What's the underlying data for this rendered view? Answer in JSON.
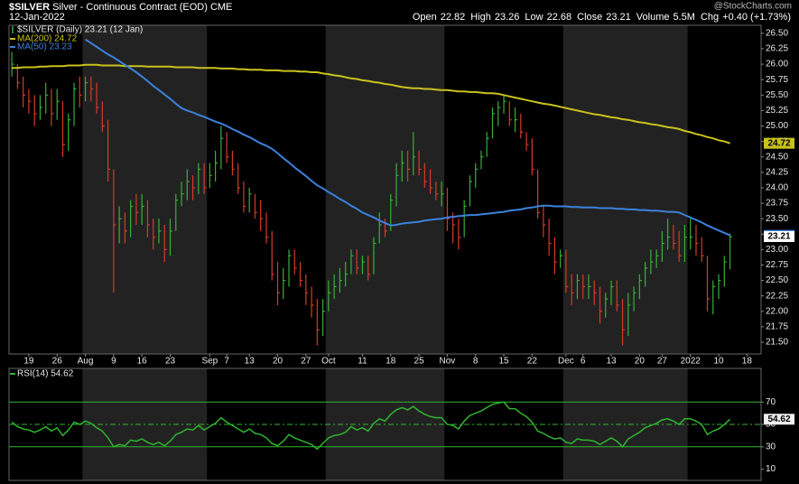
{
  "header": {
    "symbol": "$SILVER",
    "description": "Silver - Continuous Contract (EOD)",
    "exchange": "CME",
    "date": "12-Jan-2022",
    "watermark": "@StockCharts.com",
    "quote": [
      {
        "label": "Open",
        "value": "22.82"
      },
      {
        "label": "High",
        "value": "23.26"
      },
      {
        "label": "Low",
        "value": "22.68"
      },
      {
        "label": "Close",
        "value": "23.21"
      },
      {
        "label": "Volume",
        "value": "5.5M"
      },
      {
        "label": "Chg",
        "value": "+0.40 (+1.73%)"
      }
    ]
  },
  "chart_data": [
    {
      "type": "ohlc",
      "name": "$SILVER (Daily) 23.21 (12 Jan)",
      "up_color": "#38b038",
      "down_color": "#d63a2a",
      "bar_label_color": "#ffffff",
      "categories": [
        null,
        null,
        null,
        "19",
        null,
        null,
        null,
        null,
        "26",
        null,
        null,
        null,
        null,
        "Aug",
        null,
        null,
        null,
        null,
        "9",
        null,
        null,
        null,
        null,
        "16",
        null,
        null,
        null,
        null,
        "23",
        null,
        null,
        null,
        null,
        null,
        null,
        "Sep",
        null,
        null,
        "7",
        null,
        null,
        null,
        "13",
        null,
        null,
        null,
        null,
        "20",
        null,
        null,
        null,
        null,
        "27",
        null,
        null,
        null,
        "Oct",
        null,
        null,
        null,
        null,
        null,
        "11",
        null,
        null,
        null,
        null,
        "18",
        null,
        null,
        null,
        null,
        "25",
        null,
        null,
        null,
        null,
        "Nov",
        null,
        null,
        null,
        null,
        "8",
        null,
        null,
        null,
        null,
        "15",
        null,
        null,
        null,
        null,
        "22",
        null,
        null,
        null,
        null,
        null,
        "Dec",
        null,
        null,
        "6",
        null,
        null,
        null,
        null,
        "13",
        null,
        null,
        null,
        null,
        "20",
        null,
        null,
        null,
        "27",
        null,
        null,
        null,
        null,
        "2022",
        null,
        null,
        null,
        null,
        "10",
        null,
        null,
        null,
        null,
        "18",
        null,
        null
      ],
      "high": [
        26.2,
        26.0,
        25.8,
        25.6,
        25.5,
        25.5,
        25.7,
        25.6,
        25.6,
        25.4,
        25.2,
        25.7,
        25.8,
        25.8,
        25.8,
        25.7,
        25.4,
        25.1,
        24.3,
        23.7,
        23.6,
        23.8,
        23.9,
        23.9,
        23.8,
        23.5,
        23.5,
        23.4,
        23.5,
        23.9,
        24.1,
        24.3,
        24.2,
        24.4,
        24.4,
        24.4,
        24.6,
        25.0,
        24.9,
        24.6,
        24.4,
        24.1,
        24.0,
        23.9,
        23.8,
        23.6,
        23.3,
        22.8,
        22.7,
        23.0,
        23.0,
        22.8,
        22.6,
        22.4,
        22.2,
        22.2,
        22.5,
        22.6,
        22.7,
        22.8,
        23.0,
        23.0,
        22.9,
        22.9,
        23.2,
        23.6,
        23.5,
        23.9,
        24.4,
        24.6,
        24.6,
        24.9,
        24.6,
        24.4,
        24.3,
        24.1,
        24.1,
        24.0,
        23.6,
        23.5,
        23.8,
        24.2,
        24.4,
        24.6,
        24.9,
        25.3,
        25.4,
        25.5,
        25.4,
        25.3,
        25.2,
        24.9,
        24.8,
        24.3,
        23.7,
        23.5,
        23.2,
        23.0,
        23.0,
        22.6,
        22.6,
        22.6,
        22.6,
        22.5,
        22.4,
        22.3,
        22.5,
        22.5,
        22.2,
        22.3,
        22.4,
        22.6,
        22.8,
        23.0,
        23.0,
        23.3,
        23.5,
        23.4,
        23.3,
        23.4,
        23.5,
        23.4,
        23.2,
        22.9,
        22.5,
        22.6,
        22.9,
        23.26,
        null,
        null,
        null,
        null,
        null
      ],
      "low": [
        25.8,
        25.6,
        25.3,
        25.2,
        25.0,
        25.1,
        25.2,
        25.0,
        25.1,
        24.5,
        24.6,
        25.0,
        25.3,
        25.4,
        25.4,
        25.2,
        24.9,
        24.1,
        22.3,
        23.1,
        23.1,
        23.2,
        23.4,
        23.4,
        23.2,
        23.0,
        23.1,
        22.8,
        22.9,
        23.3,
        23.7,
        23.8,
        23.8,
        23.9,
        23.9,
        24.0,
        24.1,
        24.3,
        24.4,
        24.2,
        23.9,
        23.6,
        23.6,
        23.5,
        23.3,
        23.1,
        22.5,
        22.1,
        22.2,
        22.4,
        22.6,
        22.4,
        22.1,
        21.9,
        21.45,
        21.6,
        22.0,
        22.2,
        22.3,
        22.4,
        22.6,
        22.6,
        22.6,
        22.5,
        22.6,
        23.1,
        23.2,
        23.3,
        23.7,
        24.1,
        24.1,
        24.2,
        24.2,
        24.0,
        23.9,
        23.8,
        23.7,
        23.3,
        23.1,
        23.0,
        23.2,
        23.7,
        24.0,
        24.3,
        24.5,
        24.8,
        25.0,
        25.2,
        25.0,
        24.9,
        24.8,
        24.6,
        24.2,
        23.5,
        23.2,
        22.9,
        22.6,
        22.7,
        22.3,
        22.1,
        22.2,
        22.2,
        22.2,
        22.1,
        21.8,
        21.9,
        22.1,
        22.0,
        21.45,
        21.6,
        22.0,
        22.2,
        22.4,
        22.6,
        22.7,
        22.8,
        23.0,
        23.0,
        22.8,
        22.8,
        23.0,
        22.9,
        22.8,
        22.0,
        21.95,
        22.2,
        22.4,
        22.68,
        null,
        null,
        null,
        null,
        null
      ],
      "close": [
        26.0,
        25.7,
        25.5,
        25.4,
        25.2,
        25.3,
        25.5,
        25.2,
        25.4,
        24.7,
        25.1,
        25.6,
        25.5,
        25.7,
        25.6,
        25.3,
        25.0,
        24.3,
        23.4,
        23.5,
        23.3,
        23.7,
        23.6,
        23.7,
        23.4,
        23.2,
        23.3,
        23.0,
        23.3,
        23.8,
        23.9,
        24.1,
        24.0,
        24.3,
        24.0,
        24.2,
        24.4,
        24.8,
        24.5,
        24.3,
        24.0,
        23.7,
        23.9,
        23.6,
        23.5,
        23.2,
        22.6,
        22.3,
        22.5,
        22.9,
        22.7,
        22.5,
        22.3,
        22.1,
        21.7,
        22.0,
        22.3,
        22.4,
        22.5,
        22.6,
        22.9,
        22.7,
        22.8,
        22.6,
        23.1,
        23.4,
        23.3,
        23.8,
        24.2,
        24.4,
        24.3,
        24.5,
        24.3,
        24.1,
        24.0,
        23.9,
        23.9,
        23.5,
        23.4,
        23.2,
        23.7,
        24.1,
        24.3,
        24.5,
        24.8,
        25.2,
        25.3,
        25.4,
        25.1,
        25.1,
        24.9,
        24.7,
        24.3,
        23.6,
        23.4,
        23.1,
        22.8,
        22.9,
        22.4,
        22.3,
        22.5,
        22.4,
        22.4,
        22.3,
        22.0,
        22.2,
        22.4,
        22.1,
        21.7,
        22.1,
        22.3,
        22.5,
        22.7,
        22.8,
        22.9,
        23.1,
        23.2,
        23.1,
        22.9,
        23.2,
        23.2,
        23.1,
        22.9,
        22.2,
        22.4,
        22.5,
        22.8,
        23.21,
        null,
        null,
        null,
        null,
        null
      ],
      "series": [
        {
          "name": "MA(200) 24.72",
          "color": "#c9c21e",
          "values": [
            25.94,
            25.94,
            25.95,
            25.95,
            25.95,
            25.96,
            25.96,
            25.97,
            25.97,
            25.97,
            25.98,
            25.98,
            25.98,
            25.99,
            25.99,
            25.99,
            25.98,
            25.98,
            25.98,
            25.98,
            25.97,
            25.97,
            25.97,
            25.97,
            25.96,
            25.96,
            25.96,
            25.96,
            25.96,
            25.95,
            25.95,
            25.95,
            25.95,
            25.94,
            25.94,
            25.94,
            25.94,
            25.93,
            25.93,
            25.93,
            25.92,
            25.92,
            25.91,
            25.91,
            25.91,
            25.9,
            25.9,
            25.9,
            25.89,
            25.89,
            25.89,
            25.88,
            25.88,
            25.87,
            25.87,
            25.85,
            25.84,
            25.82,
            25.81,
            25.79,
            25.77,
            25.76,
            25.74,
            25.73,
            25.71,
            25.7,
            25.68,
            25.67,
            25.65,
            25.63,
            25.62,
            25.61,
            25.61,
            25.6,
            25.6,
            25.59,
            25.58,
            25.58,
            25.57,
            25.56,
            25.56,
            25.55,
            25.55,
            25.54,
            25.53,
            25.53,
            25.52,
            25.5,
            25.48,
            25.46,
            25.44,
            25.42,
            25.4,
            25.38,
            25.36,
            25.35,
            25.33,
            25.31,
            25.29,
            25.27,
            25.25,
            25.23,
            25.21,
            25.19,
            25.18,
            25.16,
            25.14,
            25.13,
            25.11,
            25.1,
            25.08,
            25.06,
            25.05,
            25.03,
            25.02,
            25.0,
            24.98,
            24.97,
            24.95,
            24.92,
            24.9,
            24.87,
            24.85,
            24.82,
            24.8,
            24.77,
            24.75,
            24.72,
            null,
            null,
            null,
            null,
            null
          ]
        },
        {
          "name": "MA(50) 23.23",
          "color": "#3b82dc",
          "values": [
            null,
            null,
            null,
            null,
            null,
            null,
            null,
            null,
            null,
            null,
            null,
            null,
            null,
            26.4,
            26.34,
            26.28,
            26.22,
            26.16,
            26.11,
            26.05,
            25.99,
            25.93,
            25.87,
            25.8,
            25.73,
            25.65,
            25.58,
            25.51,
            25.44,
            25.36,
            25.29,
            25.25,
            25.22,
            25.18,
            25.15,
            25.11,
            25.07,
            25.04,
            25.0,
            24.95,
            24.91,
            24.86,
            24.82,
            24.77,
            24.72,
            24.68,
            24.63,
            24.56,
            24.48,
            24.41,
            24.33,
            24.26,
            24.19,
            24.11,
            24.04,
            23.99,
            23.93,
            23.88,
            23.82,
            23.77,
            23.71,
            23.66,
            23.6,
            23.56,
            23.52,
            23.47,
            23.43,
            23.39,
            23.4,
            23.42,
            23.43,
            23.44,
            23.45,
            23.47,
            23.48,
            23.49,
            23.5,
            23.52,
            23.53,
            23.54,
            23.55,
            23.56,
            23.56,
            23.57,
            23.58,
            23.59,
            23.6,
            23.61,
            23.63,
            23.64,
            23.65,
            23.67,
            23.68,
            23.7,
            23.71,
            23.71,
            23.7,
            23.7,
            23.7,
            23.69,
            23.69,
            23.68,
            23.68,
            23.68,
            23.67,
            23.67,
            23.67,
            23.66,
            23.66,
            23.65,
            23.65,
            23.64,
            23.64,
            23.63,
            23.63,
            23.62,
            23.61,
            23.61,
            23.6,
            23.56,
            23.52,
            23.48,
            23.44,
            23.39,
            23.35,
            23.31,
            23.27,
            23.23,
            null,
            null,
            null,
            null,
            null
          ]
        }
      ],
      "ylim": [
        21.31,
        26.63
      ],
      "yticks": [
        {
          "value": 21.5,
          "label": "21.50"
        },
        {
          "value": 21.75,
          "label": "21.75"
        },
        {
          "value": 22,
          "label": "22.00"
        },
        {
          "value": 22.25,
          "label": "22.25"
        },
        {
          "value": 22.5,
          "label": "22.50"
        },
        {
          "value": 22.75,
          "label": "22.75"
        },
        {
          "value": 23,
          "label": "23.00"
        },
        {
          "value": 23.25,
          "label": "23.25"
        },
        {
          "value": 23.5,
          "label": "23.50"
        },
        {
          "value": 23.75,
          "label": "23.75"
        },
        {
          "value": 24,
          "label": "24.00"
        },
        {
          "value": 24.25,
          "label": "24.25"
        },
        {
          "value": 24.5,
          "label": "24.50"
        },
        {
          "value": 24.75,
          "label": "24.75"
        },
        {
          "value": 25,
          "label": "25.00"
        },
        {
          "value": 25.25,
          "label": "25.25"
        },
        {
          "value": 25.5,
          "label": "25.50"
        },
        {
          "value": 25.75,
          "label": "25.75"
        },
        {
          "value": 26,
          "label": "26.00"
        },
        {
          "value": 26.25,
          "label": "26.25"
        },
        {
          "value": 26.5,
          "label": "26.50"
        }
      ]
    },
    {
      "type": "line",
      "series": [
        {
          "name": "RSI(14) 54.62",
          "color": "#2fb52f",
          "values": [
            52,
            48,
            46,
            45,
            43,
            45,
            48,
            44,
            47,
            40,
            45,
            52,
            50,
            53,
            51,
            47,
            44,
            38,
            30,
            32,
            31,
            36,
            35,
            37,
            34,
            32,
            34,
            31,
            35,
            41,
            43,
            46,
            45,
            49,
            45,
            48,
            51,
            56,
            52,
            49,
            46,
            43,
            46,
            42,
            41,
            38,
            33,
            31,
            35,
            41,
            38,
            36,
            34,
            32,
            28,
            33,
            38,
            40,
            41,
            43,
            48,
            45,
            47,
            44,
            51,
            55,
            53,
            59,
            63,
            65,
            63,
            66,
            62,
            59,
            57,
            56,
            56,
            50,
            49,
            46,
            53,
            58,
            60,
            62,
            65,
            68,
            69,
            70,
            64,
            64,
            60,
            57,
            52,
            44,
            42,
            39,
            37,
            38,
            34,
            33,
            37,
            36,
            36,
            35,
            32,
            35,
            38,
            35,
            30,
            37,
            40,
            43,
            47,
            49,
            51,
            54,
            55,
            53,
            50,
            55,
            55,
            53,
            50,
            41,
            44,
            46,
            50,
            54.62,
            null,
            null,
            null,
            null,
            null
          ]
        }
      ],
      "ylim": [
        0,
        100
      ],
      "yticks": [
        10,
        30,
        50,
        70
      ],
      "bands": [
        30,
        70
      ],
      "centerline": 50
    }
  ]
}
